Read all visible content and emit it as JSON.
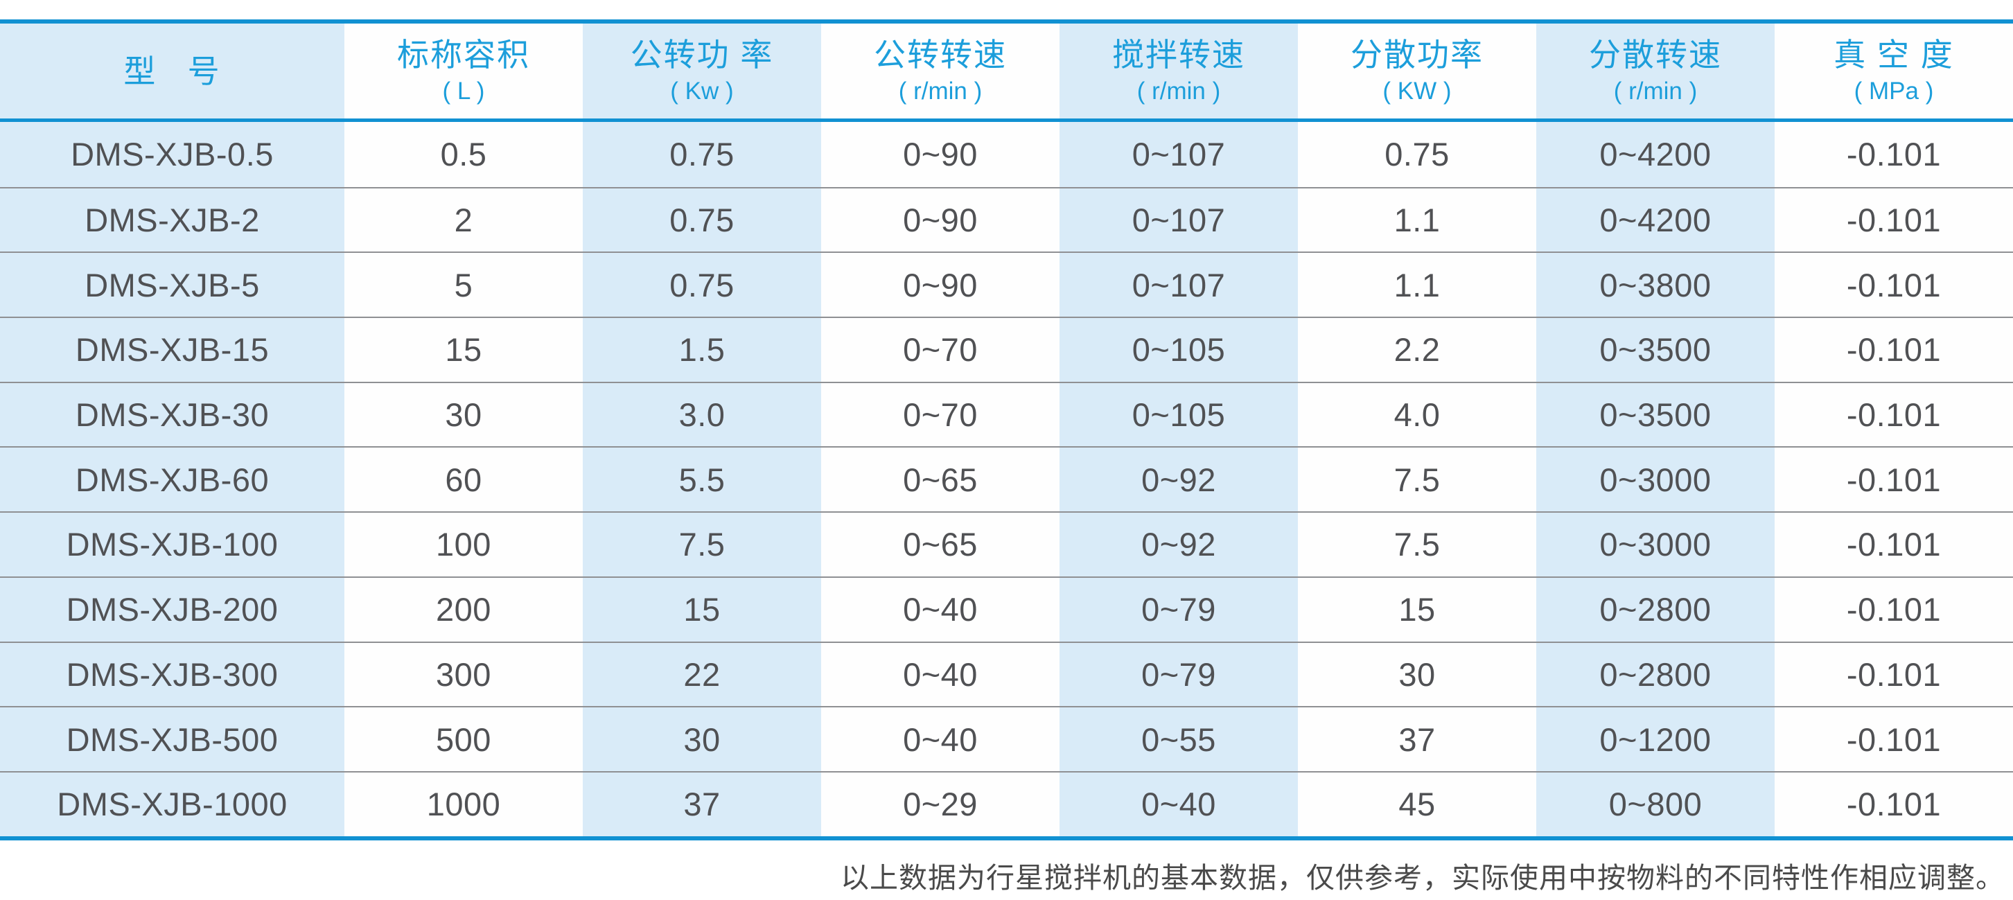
{
  "colors": {
    "border_blue": "#1191d2",
    "header_text_blue": "#1c9edb",
    "stripe_light_blue": "#d9ebf8",
    "row_separator_gray": "#8f9093",
    "data_text_gray": "#505154"
  },
  "table": {
    "columns": [
      {
        "title": "型   号",
        "unit": ""
      },
      {
        "title": "标称容积",
        "unit": "( L )"
      },
      {
        "title": "公转功 率",
        "unit": "( Kw )"
      },
      {
        "title": "公转转速",
        "unit": "( r/min )"
      },
      {
        "title": "搅拌转速",
        "unit": "( r/min )"
      },
      {
        "title": "分散功率",
        "unit": "( KW )"
      },
      {
        "title": "分散转速",
        "unit": "( r/min )"
      },
      {
        "title": "真 空 度",
        "unit": "( MPa )"
      }
    ],
    "rows": [
      [
        "DMS-XJB-0.5",
        "0.5",
        "0.75",
        "0~90",
        "0~107",
        "0.75",
        "0~4200",
        "-0.101"
      ],
      [
        "DMS-XJB-2",
        "2",
        "0.75",
        "0~90",
        "0~107",
        "1.1",
        "0~4200",
        "-0.101"
      ],
      [
        "DMS-XJB-5",
        "5",
        "0.75",
        "0~90",
        "0~107",
        "1.1",
        "0~3800",
        "-0.101"
      ],
      [
        "DMS-XJB-15",
        "15",
        "1.5",
        "0~70",
        "0~105",
        "2.2",
        "0~3500",
        "-0.101"
      ],
      [
        "DMS-XJB-30",
        "30",
        "3.0",
        "0~70",
        "0~105",
        "4.0",
        "0~3500",
        "-0.101"
      ],
      [
        "DMS-XJB-60",
        "60",
        "5.5",
        "0~65",
        "0~92",
        "7.5",
        "0~3000",
        "-0.101"
      ],
      [
        "DMS-XJB-100",
        "100",
        "7.5",
        "0~65",
        "0~92",
        "7.5",
        "0~3000",
        "-0.101"
      ],
      [
        "DMS-XJB-200",
        "200",
        "15",
        "0~40",
        "0~79",
        "15",
        "0~2800",
        "-0.101"
      ],
      [
        "DMS-XJB-300",
        "300",
        "22",
        "0~40",
        "0~79",
        "30",
        "0~2800",
        "-0.101"
      ],
      [
        "DMS-XJB-500",
        "500",
        "30",
        "0~40",
        "0~55",
        "37",
        "0~1200",
        "-0.101"
      ],
      [
        "DMS-XJB-1000",
        "1000",
        "37",
        "0~29",
        "0~40",
        "45",
        "0~800",
        "-0.101"
      ]
    ]
  },
  "footer": {
    "note": "以上数据为行星搅拌机的基本数据，仅供参考，实际使用中按物料的不同特性作相应调整。"
  }
}
